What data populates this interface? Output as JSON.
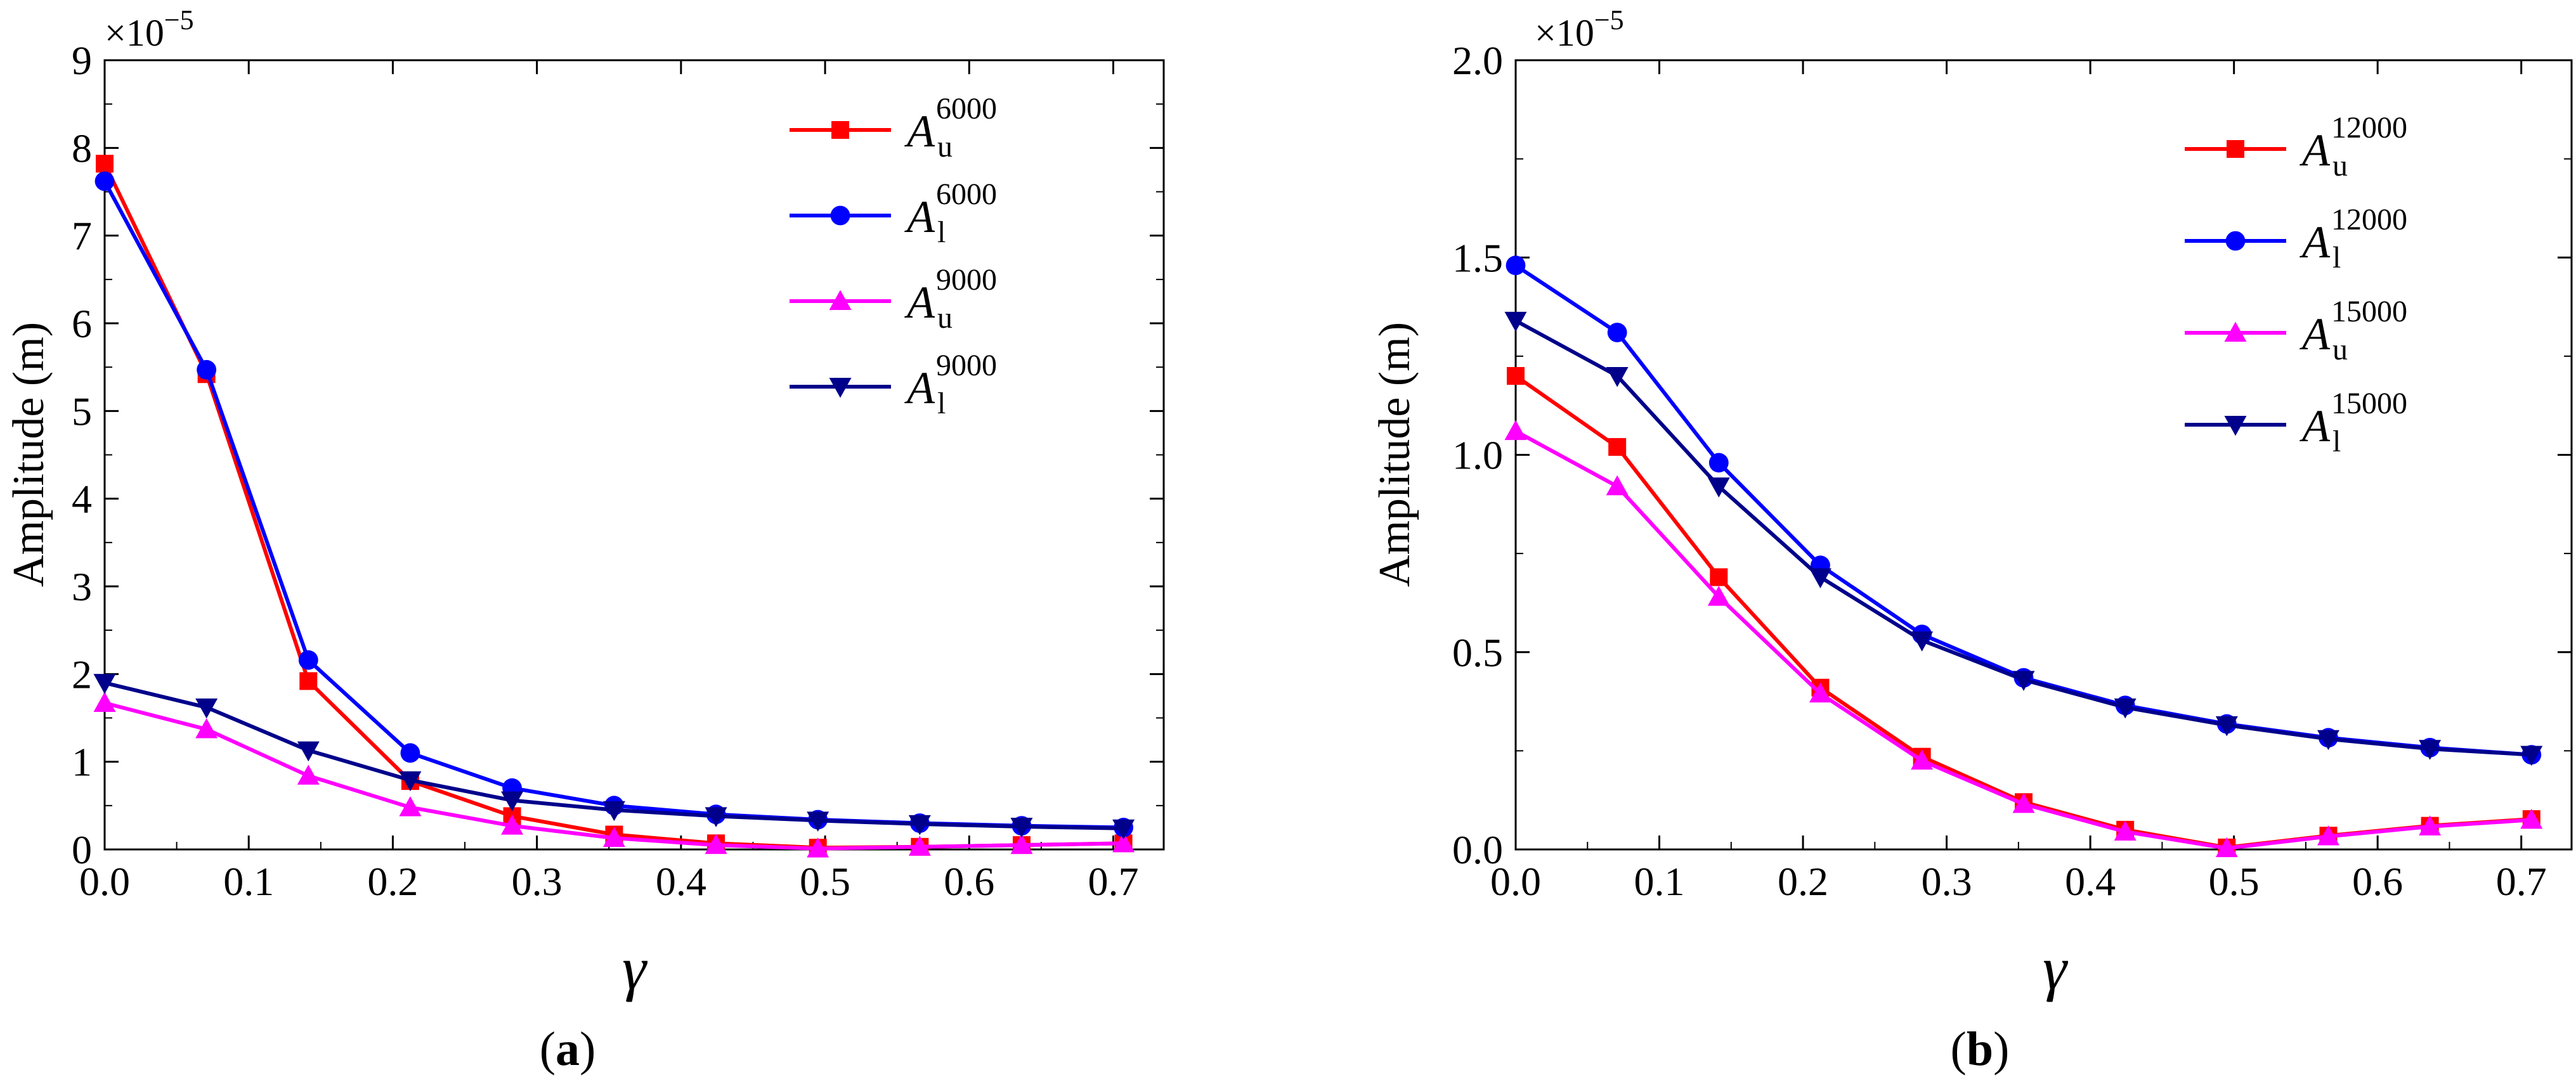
{
  "figure": {
    "panels": [
      {
        "id": "a",
        "label_open": "(",
        "label_letter": "a",
        "label_close": ")",
        "multiplier_base": "×10",
        "multiplier_exp": "−5"
      },
      {
        "id": "b",
        "label_open": "(",
        "label_letter": "b",
        "label_close": ")",
        "multiplier_base": "×10",
        "multiplier_exp": "−5"
      }
    ]
  },
  "colors": {
    "red": "#ff0000",
    "blue": "#0000ff",
    "magenta": "#ff00ff",
    "navy": "#00008b"
  },
  "chart_data": [
    {
      "type": "line",
      "panel": "a",
      "title": "",
      "xlabel": "γ",
      "ylabel": "Amplitude (m)",
      "xlim": [
        0.0,
        0.735
      ],
      "ylim": [
        0,
        9
      ],
      "y_scale_note": "×10^−5",
      "x_ticks": [
        0.0,
        0.1,
        0.2,
        0.3,
        0.4,
        0.5,
        0.6,
        0.7
      ],
      "x_tick_labels": [
        "0.0",
        "0.1",
        "0.2",
        "0.3",
        "0.4",
        "0.5",
        "0.6",
        "0.7"
      ],
      "y_ticks": [
        0,
        1,
        2,
        3,
        4,
        5,
        6,
        7,
        8,
        9
      ],
      "y_tick_labels": [
        "0",
        "1",
        "2",
        "3",
        "4",
        "5",
        "6",
        "7",
        "8",
        "9"
      ],
      "legend_position": "top-right",
      "x": [
        0.0,
        0.0707,
        0.1414,
        0.2121,
        0.2828,
        0.3536,
        0.4243,
        0.495,
        0.5657,
        0.6364,
        0.7071
      ],
      "series": [
        {
          "name": "A_u^6000",
          "legend_main": "A",
          "legend_sub": "u",
          "legend_sup": "6000",
          "color": "#ff0000",
          "marker": "square",
          "values": [
            7.82,
            5.42,
            1.92,
            0.78,
            0.38,
            0.17,
            0.07,
            0.02,
            0.03,
            0.05,
            0.07
          ]
        },
        {
          "name": "A_l^6000",
          "legend_main": "A",
          "legend_sub": "l",
          "legend_sup": "6000",
          "color": "#0000ff",
          "marker": "circle",
          "values": [
            7.62,
            5.47,
            2.16,
            1.1,
            0.7,
            0.5,
            0.4,
            0.34,
            0.3,
            0.27,
            0.25
          ]
        },
        {
          "name": "A_u^9000",
          "legend_main": "A",
          "legend_sub": "u",
          "legend_sup": "9000",
          "color": "#ff00ff",
          "marker": "triangle-up",
          "values": [
            1.67,
            1.37,
            0.84,
            0.48,
            0.27,
            0.13,
            0.05,
            0.01,
            0.03,
            0.05,
            0.07
          ]
        },
        {
          "name": "A_l^9000",
          "legend_main": "A",
          "legend_sub": "l",
          "legend_sup": "9000",
          "color": "#00008b",
          "marker": "triangle-down",
          "values": [
            1.9,
            1.62,
            1.13,
            0.79,
            0.56,
            0.45,
            0.38,
            0.33,
            0.29,
            0.26,
            0.24
          ]
        }
      ]
    },
    {
      "type": "line",
      "panel": "b",
      "title": "",
      "xlabel": "γ",
      "ylabel": "Amplitude (m)",
      "xlim": [
        0.0,
        0.735
      ],
      "ylim": [
        0,
        2.0
      ],
      "y_scale_note": "×10^−5",
      "x_ticks": [
        0.0,
        0.1,
        0.2,
        0.3,
        0.4,
        0.5,
        0.6,
        0.7
      ],
      "x_tick_labels": [
        "0.0",
        "0.1",
        "0.2",
        "0.3",
        "0.4",
        "0.5",
        "0.6",
        "0.7"
      ],
      "y_ticks": [
        0.0,
        0.5,
        1.0,
        1.5,
        2.0
      ],
      "y_tick_labels": [
        "0.0",
        "0.5",
        "1.0",
        "1.5",
        "2.0"
      ],
      "legend_position": "top-right",
      "x": [
        0.0,
        0.0707,
        0.1414,
        0.2121,
        0.2828,
        0.3536,
        0.4243,
        0.495,
        0.5657,
        0.6364,
        0.7071
      ],
      "series": [
        {
          "name": "A_u^12000",
          "legend_main": "A",
          "legend_sub": "u",
          "legend_sup": "12000",
          "color": "#ff0000",
          "marker": "square",
          "values": [
            1.2,
            1.02,
            0.69,
            0.41,
            0.235,
            0.12,
            0.05,
            0.005,
            0.035,
            0.06,
            0.077
          ]
        },
        {
          "name": "A_l^12000",
          "legend_main": "A",
          "legend_sub": "l",
          "legend_sup": "12000",
          "color": "#0000ff",
          "marker": "circle",
          "values": [
            1.48,
            1.31,
            0.98,
            0.72,
            0.545,
            0.435,
            0.365,
            0.318,
            0.283,
            0.258,
            0.24
          ]
        },
        {
          "name": "A_u^15000",
          "legend_main": "A",
          "legend_sub": "u",
          "legend_sup": "15000",
          "color": "#ff00ff",
          "marker": "triangle-up",
          "values": [
            1.06,
            0.92,
            0.64,
            0.395,
            0.225,
            0.115,
            0.045,
            0.003,
            0.033,
            0.058,
            0.075
          ]
        },
        {
          "name": "A_l^15000",
          "legend_main": "A",
          "legend_sub": "l",
          "legend_sup": "15000",
          "color": "#00008b",
          "marker": "triangle-down",
          "values": [
            1.34,
            1.2,
            0.92,
            0.69,
            0.53,
            0.43,
            0.36,
            0.315,
            0.28,
            0.255,
            0.24
          ]
        }
      ]
    }
  ]
}
